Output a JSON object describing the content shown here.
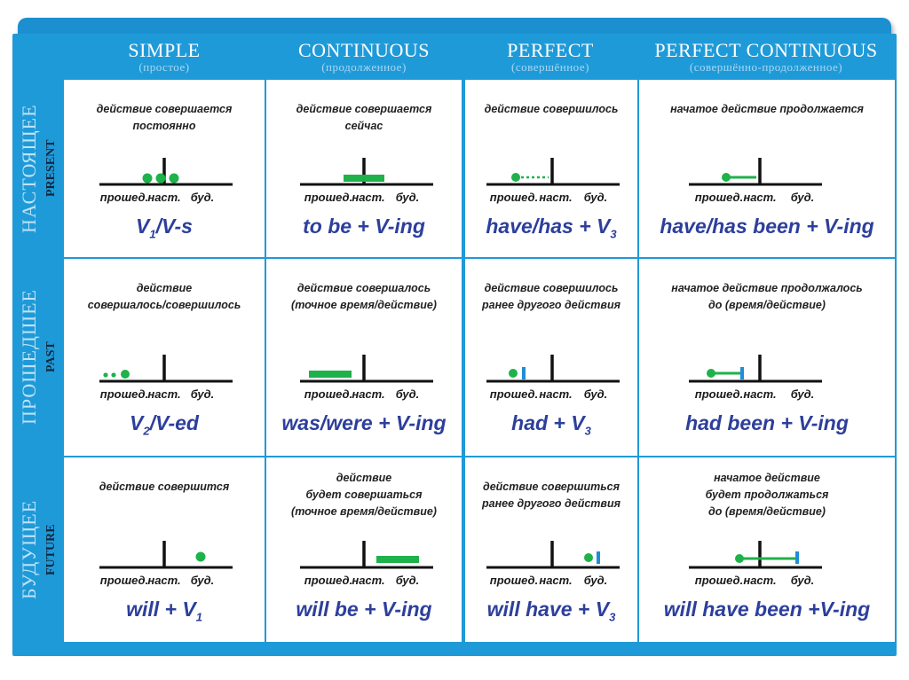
{
  "columns": [
    {
      "en": "SIMPLE",
      "ru": "(простое)"
    },
    {
      "en": "CONTINUOUS",
      "ru": "(продолженное)"
    },
    {
      "en": "PERFECT",
      "ru": "(совершённое)"
    },
    {
      "en": "PERFECT CONTINUOUS",
      "ru": "(совершённо-продолженное)"
    }
  ],
  "rows": [
    {
      "ru": "НАСТОЯЩЕЕ",
      "en": "PRESENT"
    },
    {
      "ru": "ПРОШЕДШЕЕ",
      "en": "PAST"
    },
    {
      "ru": "БУДУЩЕЕ",
      "en": "FUTURE"
    }
  ],
  "timeline_labels": {
    "past": "прошед.",
    "present": "наст.",
    "future": "буд."
  },
  "colors": {
    "frame": "#1f9ad8",
    "action": "#1fb14a",
    "marker": "#1f8ed6",
    "formula": "#2d3f9c"
  },
  "cells": [
    [
      {
        "desc": [
          "действие совершается",
          "постоянно"
        ],
        "formula": {
          "pre": "V",
          "sub": "1",
          "post": "/V-s"
        }
      },
      {
        "desc": [
          "действие совершается",
          "сейчас"
        ],
        "formula": {
          "pre": "to be + V-ing",
          "sub": "",
          "post": ""
        }
      },
      {
        "desc": [
          "действие совершилось"
        ],
        "formula": {
          "pre": "have/has + V",
          "sub": "3",
          "post": ""
        }
      },
      {
        "desc": [
          "начатое действие продолжается"
        ],
        "formula": {
          "pre": "have/has been + V-ing",
          "sub": "",
          "post": ""
        }
      }
    ],
    [
      {
        "desc": [
          "действие",
          "совершалось/совершилось"
        ],
        "formula": {
          "pre": "V",
          "sub": "2",
          "post": "/V-ed"
        }
      },
      {
        "desc": [
          "действие совершалось",
          "(точное время/действие)"
        ],
        "formula": {
          "pre": "was/were + V-ing",
          "sub": "",
          "post": ""
        }
      },
      {
        "desc": [
          "действие совершилось",
          "ранее другого действия"
        ],
        "formula": {
          "pre": "had + V",
          "sub": "3",
          "post": ""
        }
      },
      {
        "desc": [
          "начатое действие продолжалось",
          "до (время/действие)"
        ],
        "formula": {
          "pre": "had been + V-ing",
          "sub": "",
          "post": ""
        }
      }
    ],
    [
      {
        "desc": [
          "действие совершится"
        ],
        "formula": {
          "pre": "will + V",
          "sub": "1",
          "post": ""
        }
      },
      {
        "desc": [
          "действие",
          "будет совершаться",
          "(точное время/действие)"
        ],
        "formula": {
          "pre": "will be + V-ing",
          "sub": "",
          "post": ""
        }
      },
      {
        "desc": [
          "действие совершиться",
          "ранее другого действия"
        ],
        "formula": {
          "pre": "will have + V",
          "sub": "3",
          "post": ""
        }
      },
      {
        "desc": [
          "начатое действие",
          "будет продолжаться",
          "до (время/действие)"
        ],
        "formula": {
          "pre": "will have been +V-ing",
          "sub": "",
          "post": ""
        }
      }
    ]
  ]
}
